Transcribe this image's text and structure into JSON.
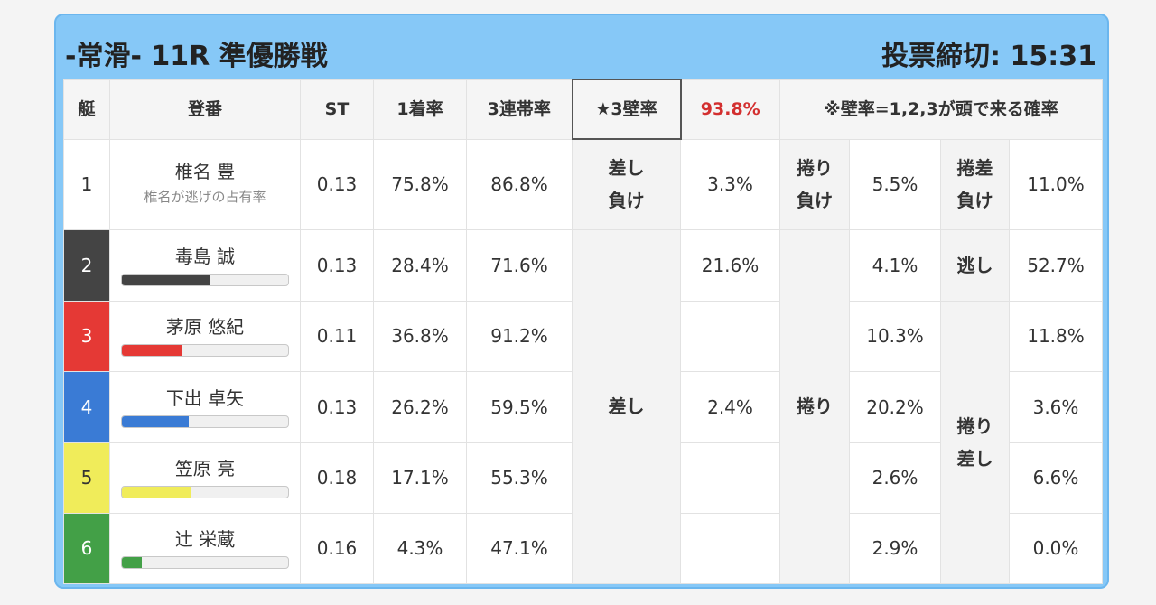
{
  "header": {
    "title": "-常滑- 11R 準優勝戦",
    "deadline": "投票締切: 15:31"
  },
  "table": {
    "columns": [
      "艇",
      "登番",
      "ST",
      "1着率",
      "3連帯率",
      "★3壁率"
    ],
    "wall_rate": "93.8%",
    "note": "※壁率=1,2,3が頭で来る確率",
    "bar_lim": [
      0,
      100
    ],
    "rows": [
      {
        "boat": "1",
        "color": "#ffffff",
        "name": "椎名 豊",
        "sub": "椎名が逃げの占有率",
        "st": "0.13",
        "win": "75.8%",
        "top3": "86.8%",
        "c6": "差し\n負け",
        "c7": "3.3%",
        "c8": "捲り\n負け",
        "c9": "5.5%",
        "c10": "捲差\n負け",
        "c11": "11.0%"
      },
      {
        "boat": "2",
        "color": "#444444",
        "name": "毒島 誠",
        "bar": 53,
        "st": "0.13",
        "win": "28.4%",
        "top3": "71.6%",
        "c6": "差し",
        "c7": "21.6%",
        "c8": "捲り",
        "c9": "4.1%",
        "c10": "逃し",
        "c11": "52.7%"
      },
      {
        "boat": "3",
        "color": "#e53935",
        "name": "茅原 悠紀",
        "bar": 36,
        "st": "0.11",
        "win": "36.8%",
        "top3": "91.2%",
        "c9": "10.3%",
        "c10": "捲り\n差し",
        "c11": "11.8%"
      },
      {
        "boat": "4",
        "color": "#3a7bd5",
        "name": "下出 卓矢",
        "bar": 40,
        "st": "0.13",
        "win": "26.2%",
        "top3": "59.5%",
        "c7": "2.4%",
        "c9": "20.2%",
        "c11": "3.6%"
      },
      {
        "boat": "5",
        "color": "#f0ec5a",
        "name": "笠原 亮",
        "bar": 42,
        "st": "0.18",
        "win": "17.1%",
        "top3": "55.3%",
        "c9": "2.6%",
        "c11": "6.6%"
      },
      {
        "boat": "6",
        "color": "#43a047",
        "name": "辻 栄蔵",
        "bar": 12,
        "st": "0.16",
        "win": "4.3%",
        "top3": "47.1%",
        "c9": "2.9%",
        "c11": "0.0%"
      }
    ]
  }
}
